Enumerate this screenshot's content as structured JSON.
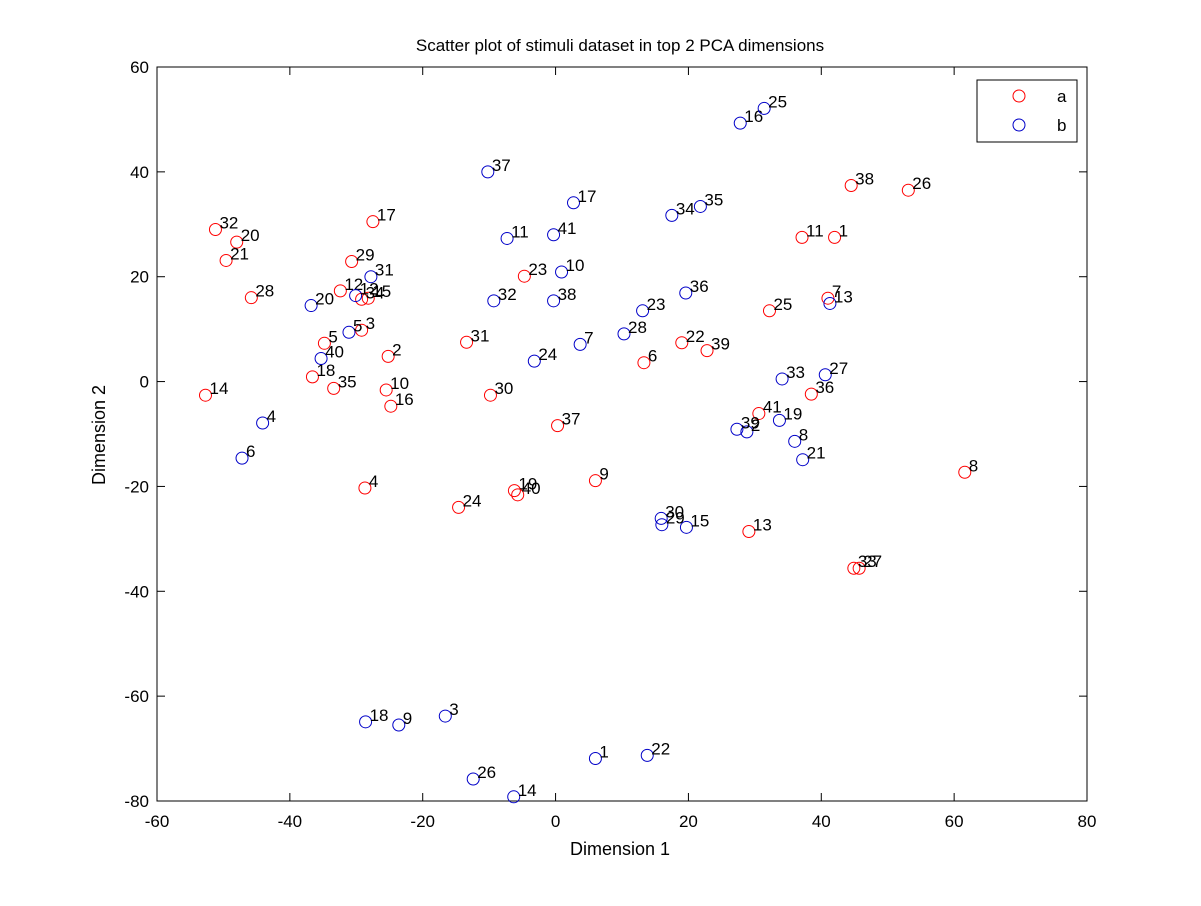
{
  "chart_data": {
    "type": "scatter",
    "title": "Scatter plot of stimuli dataset in top 2 PCA dimensions",
    "xlabel": "Dimension 1",
    "ylabel": "Dimension 2",
    "xlim": [
      -60,
      80
    ],
    "ylim": [
      -80,
      60
    ],
    "xticks": [
      -60,
      -40,
      -20,
      0,
      20,
      40,
      60,
      80
    ],
    "yticks": [
      -80,
      -60,
      -40,
      -20,
      0,
      20,
      40,
      60
    ],
    "grid": false,
    "legend_position": "top-right",
    "marker": "open-circle",
    "series": [
      {
        "name": "a",
        "color": "#ff0000",
        "points": [
          {
            "label": "1",
            "x": 42.0,
            "y": 27.5
          },
          {
            "label": "2",
            "x": -25.2,
            "y": 4.8
          },
          {
            "label": "3",
            "x": -29.2,
            "y": 9.8
          },
          {
            "label": "4",
            "x": -28.7,
            "y": -20.3
          },
          {
            "label": "5",
            "x": -34.8,
            "y": 7.3
          },
          {
            "label": "6",
            "x": 13.3,
            "y": 3.6
          },
          {
            "label": "7",
            "x": 41.0,
            "y": 15.9
          },
          {
            "label": "8",
            "x": 61.6,
            "y": -17.3
          },
          {
            "label": "9",
            "x": 6.0,
            "y": -18.9
          },
          {
            "label": "10",
            "x": -25.5,
            "y": -1.6
          },
          {
            "label": "11",
            "x": 37.1,
            "y": 27.5
          },
          {
            "label": "12",
            "x": -32.4,
            "y": 17.3
          },
          {
            "label": "13",
            "x": 29.1,
            "y": -28.6
          },
          {
            "label": "14",
            "x": -52.7,
            "y": -2.6
          },
          {
            "label": "15",
            "x": -28.2,
            "y": 15.9
          },
          {
            "label": "16",
            "x": -24.8,
            "y": -4.7
          },
          {
            "label": "17",
            "x": -27.5,
            "y": 30.5
          },
          {
            "label": "18",
            "x": -36.6,
            "y": 0.9
          },
          {
            "label": "19",
            "x": -6.2,
            "y": -20.8
          },
          {
            "label": "20",
            "x": -48.0,
            "y": 26.6
          },
          {
            "label": "21",
            "x": -49.6,
            "y": 23.1
          },
          {
            "label": "22",
            "x": 19.0,
            "y": 7.4
          },
          {
            "label": "23",
            "x": -4.7,
            "y": 20.1
          },
          {
            "label": "24",
            "x": -14.6,
            "y": -24.0
          },
          {
            "label": "25",
            "x": 32.2,
            "y": 13.5
          },
          {
            "label": "26",
            "x": 53.1,
            "y": 36.5
          },
          {
            "label": "27",
            "x": 45.7,
            "y": -35.6
          },
          {
            "label": "28",
            "x": -45.8,
            "y": 16.0
          },
          {
            "label": "29",
            "x": -30.7,
            "y": 22.9
          },
          {
            "label": "30",
            "x": -9.8,
            "y": -2.6
          },
          {
            "label": "31",
            "x": -13.4,
            "y": 7.5
          },
          {
            "label": "32",
            "x": -51.2,
            "y": 29.0
          },
          {
            "label": "33",
            "x": 44.9,
            "y": -35.6
          },
          {
            "label": "34",
            "x": -29.2,
            "y": 15.7
          },
          {
            "label": "35",
            "x": -33.4,
            "y": -1.3
          },
          {
            "label": "36",
            "x": 38.5,
            "y": -2.4
          },
          {
            "label": "37",
            "x": 0.3,
            "y": -8.4
          },
          {
            "label": "38",
            "x": 44.5,
            "y": 37.4
          },
          {
            "label": "39",
            "x": 22.8,
            "y": 5.9
          },
          {
            "label": "40",
            "x": -5.7,
            "y": -21.6
          },
          {
            "label": "41",
            "x": 30.6,
            "y": -6.1
          }
        ]
      },
      {
        "name": "b",
        "color": "#0000c8",
        "points": [
          {
            "label": "1",
            "x": 6.0,
            "y": -71.9
          },
          {
            "label": "2",
            "x": 28.8,
            "y": -9.6
          },
          {
            "label": "3",
            "x": -16.6,
            "y": -63.8
          },
          {
            "label": "4",
            "x": -44.1,
            "y": -7.9
          },
          {
            "label": "5",
            "x": -31.1,
            "y": 9.4
          },
          {
            "label": "6",
            "x": -47.2,
            "y": -14.6
          },
          {
            "label": "7",
            "x": 3.7,
            "y": 7.1
          },
          {
            "label": "8",
            "x": 36.0,
            "y": -11.4
          },
          {
            "label": "9",
            "x": -23.6,
            "y": -65.5
          },
          {
            "label": "10",
            "x": 0.9,
            "y": 20.9
          },
          {
            "label": "11",
            "x": -7.3,
            "y": 27.3
          },
          {
            "label": "12",
            "x": -30.1,
            "y": 16.4
          },
          {
            "label": "13",
            "x": 41.3,
            "y": 14.9
          },
          {
            "label": "14",
            "x": -6.3,
            "y": -79.2
          },
          {
            "label": "15",
            "x": 19.7,
            "y": -27.8
          },
          {
            "label": "16",
            "x": 27.8,
            "y": 49.3
          },
          {
            "label": "17",
            "x": 2.7,
            "y": 34.1
          },
          {
            "label": "18",
            "x": -28.6,
            "y": -64.9
          },
          {
            "label": "19",
            "x": 33.7,
            "y": -7.4
          },
          {
            "label": "20",
            "x": -36.8,
            "y": 14.5
          },
          {
            "label": "21",
            "x": 37.2,
            "y": -14.9
          },
          {
            "label": "22",
            "x": 13.8,
            "y": -71.3
          },
          {
            "label": "23",
            "x": 13.1,
            "y": 13.5
          },
          {
            "label": "24",
            "x": -3.2,
            "y": 3.9
          },
          {
            "label": "25",
            "x": 31.4,
            "y": 52.1
          },
          {
            "label": "26",
            "x": -12.4,
            "y": -75.8
          },
          {
            "label": "27",
            "x": 40.6,
            "y": 1.3
          },
          {
            "label": "28",
            "x": 10.3,
            "y": 9.1
          },
          {
            "label": "29",
            "x": 16.0,
            "y": -27.3
          },
          {
            "label": "30",
            "x": 15.9,
            "y": -26.1
          },
          {
            "label": "31",
            "x": -27.8,
            "y": 20.0
          },
          {
            "label": "32",
            "x": -9.3,
            "y": 15.4
          },
          {
            "label": "33",
            "x": 34.1,
            "y": 0.5
          },
          {
            "label": "34",
            "x": 17.5,
            "y": 31.7
          },
          {
            "label": "35",
            "x": 21.8,
            "y": 33.4
          },
          {
            "label": "36",
            "x": 19.6,
            "y": 16.9
          },
          {
            "label": "37",
            "x": -10.2,
            "y": 40.0
          },
          {
            "label": "38",
            "x": -0.3,
            "y": 15.4
          },
          {
            "label": "39",
            "x": 27.3,
            "y": -9.1
          },
          {
            "label": "40",
            "x": -35.3,
            "y": 4.4
          },
          {
            "label": "41",
            "x": -0.3,
            "y": 28.0
          }
        ]
      }
    ]
  }
}
